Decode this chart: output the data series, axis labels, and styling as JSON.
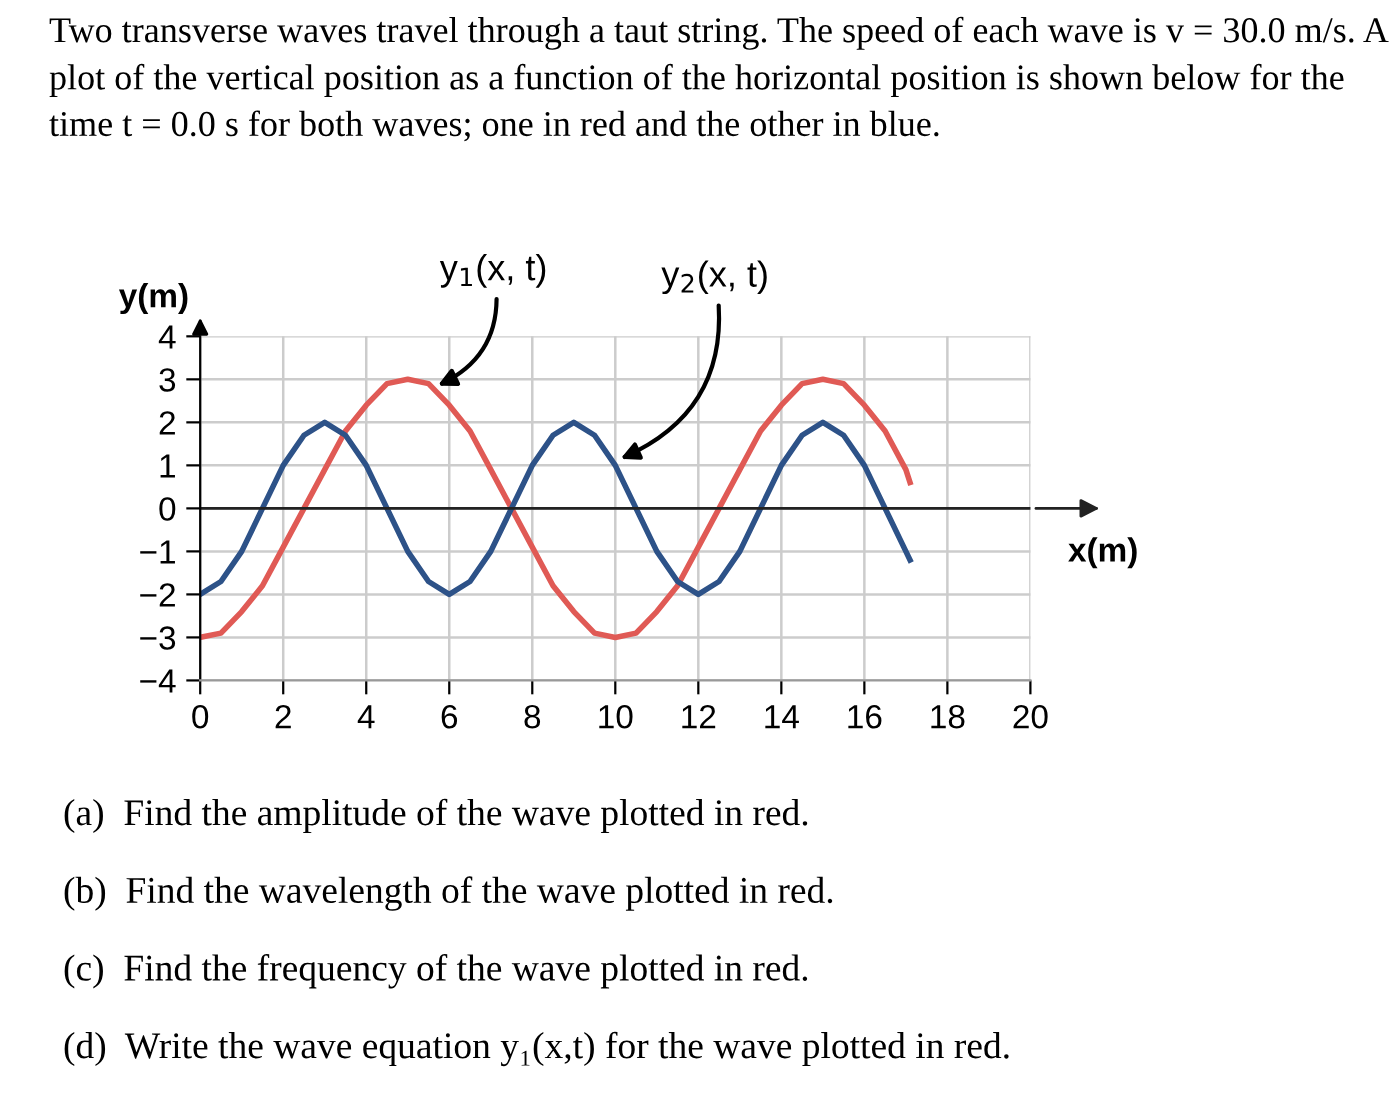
{
  "chart_data": {
    "type": "line",
    "title": "Two transverse waves travel through a taut string. The speed of each wave is v = 30.0 m/s. A plot of the vertical position as a function of the horizontal position is shown below for the time t = 0.0 s for both waves; one in red and the other in blue.",
    "xlabel": "x(m)",
    "ylabel": "y(m)",
    "series": [
      {
        "color": "#e05a55",
        "x": [
          0,
          0.5,
          1,
          1.5,
          2,
          2.5,
          3,
          3.5,
          4,
          4.5,
          5,
          5.5,
          6,
          6.5,
          7,
          7.5,
          8,
          8.5,
          9,
          9.5,
          10,
          10.5,
          11,
          11.5,
          12,
          12.5,
          13,
          13.5,
          14,
          14.5,
          15,
          15.5,
          16,
          16.5,
          17,
          17.1
        ],
        "values": [
          -3,
          -2.9,
          -2.4,
          -1.8,
          -0.9,
          0,
          0.9,
          1.8,
          2.4,
          2.9,
          3,
          2.9,
          2.4,
          1.8,
          0.9,
          0,
          -0.9,
          -1.8,
          -2.4,
          -2.9,
          -3,
          -2.9,
          -2.4,
          -1.8,
          -0.9,
          0,
          0.9,
          1.8,
          2.4,
          2.9,
          3,
          2.9,
          2.4,
          1.8,
          0.9,
          0.6
        ]
      },
      {
        "color": "#2d5288",
        "x": [
          0,
          0.5,
          1,
          1.5,
          2,
          2.5,
          3,
          3.5,
          4,
          4.5,
          5,
          5.5,
          6,
          6.5,
          7,
          7.5,
          8,
          8.5,
          9,
          9.5,
          10,
          10.5,
          11,
          11.5,
          12,
          12.5,
          13,
          13.5,
          14,
          14.5,
          15,
          15.5,
          16,
          16.5,
          17,
          17.1
        ],
        "values": [
          -2,
          -1.7,
          -1,
          0,
          1,
          1.7,
          2,
          1.7,
          1,
          0,
          -1,
          -1.7,
          -2,
          -1.7,
          -1,
          0,
          1,
          1.7,
          2,
          1.7,
          1,
          0,
          -1,
          -1.7,
          -2,
          -1.7,
          -1,
          0,
          1,
          1.7,
          2,
          1.7,
          1,
          0,
          -1,
          -1.2
        ]
      }
    ],
    "xlim": [
      0,
      20
    ],
    "xticks": [
      0,
      2,
      4,
      6,
      8,
      10,
      12,
      14,
      16,
      18,
      20
    ],
    "ylim": [
      -4,
      4
    ],
    "yticks": [
      -4,
      -3,
      -2,
      -1,
      0,
      1,
      2,
      3,
      4
    ],
    "grid": true,
    "ref_lines": [
      {
        "axis": "y",
        "value": 0,
        "color": "#222222"
      }
    ],
    "annotations": [
      {
        "text": "y$_{1}$(x, t)",
        "x": 5.6,
        "y": 2.8
      },
      {
        "text": "y$_{2}$(x, t)",
        "x": 10,
        "y": 1.1
      },
      "(a)  Find the amplitude of the wave plotted in red.",
      "(b)  Find the wavelength of the wave plotted in red.",
      "(c)  Find the frequency of the wave plotted in red.",
      "(d)  Write the wave equation y₁(x,t) for the wave plotted in red."
    ]
  }
}
